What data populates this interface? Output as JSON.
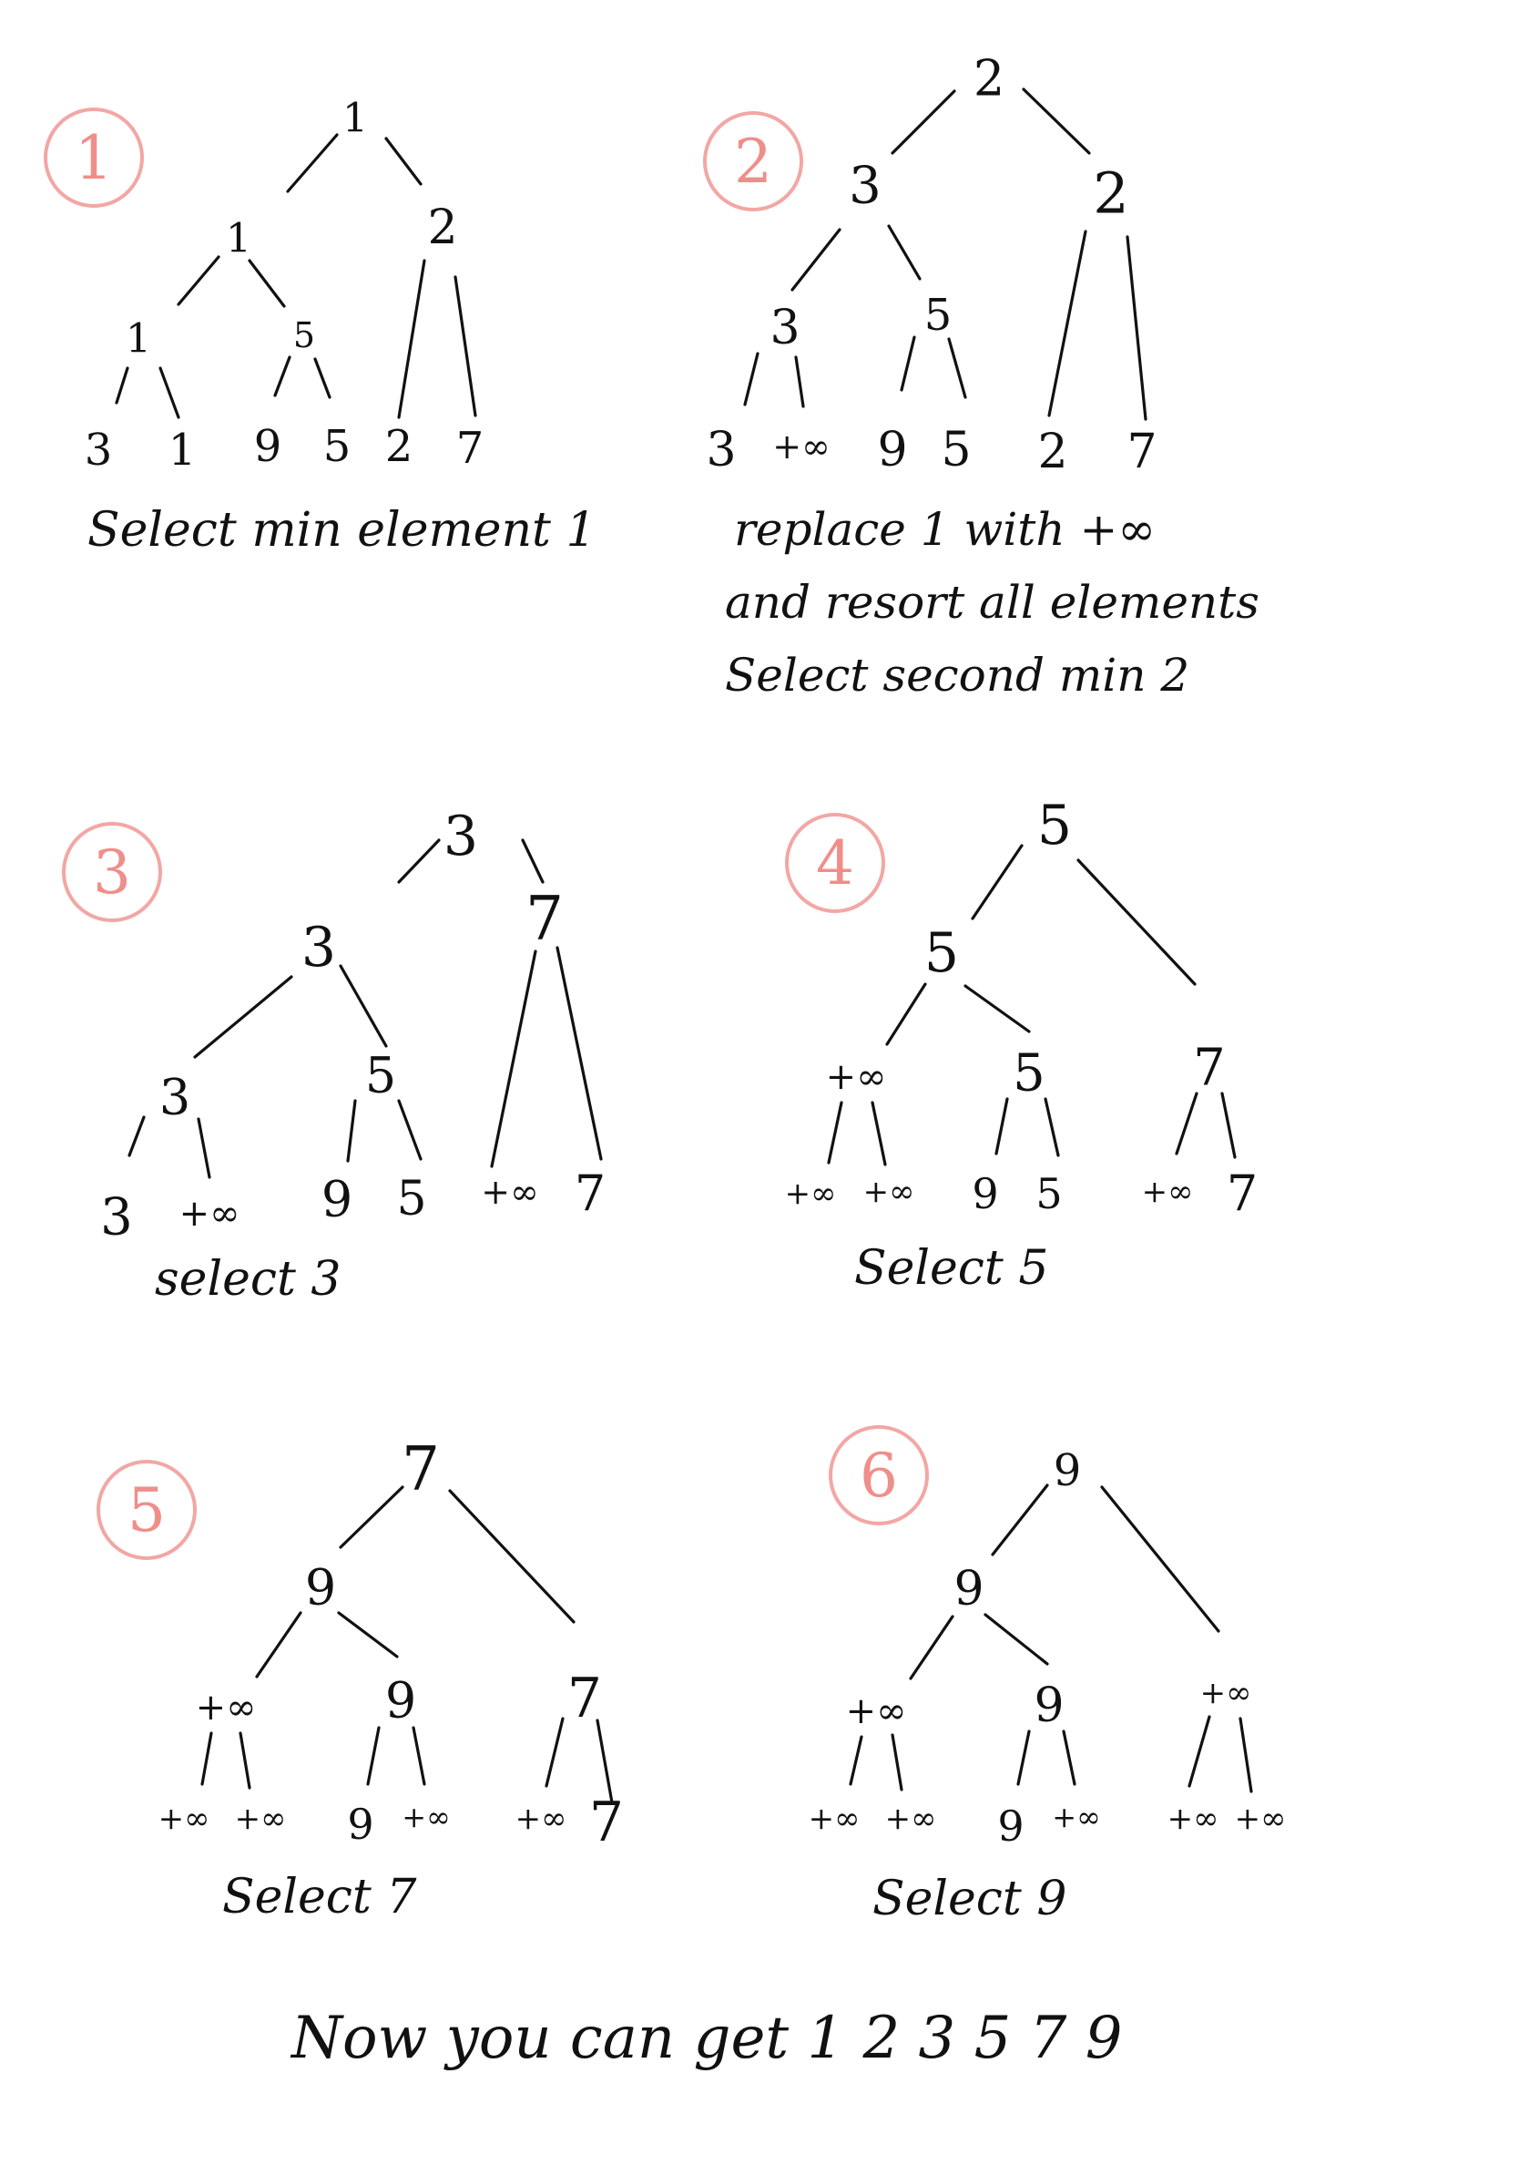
{
  "panels": [
    {
      "label": "1",
      "root": "1",
      "level2": [
        "1",
        "2"
      ],
      "level3": [
        "1",
        "5"
      ],
      "leaves": [
        "3",
        "1",
        "9",
        "5",
        "2",
        "7"
      ],
      "caption": [
        "Select min element 1"
      ]
    },
    {
      "label": "2",
      "root": "2",
      "level2": [
        "3",
        "2"
      ],
      "level3": [
        "3",
        "5"
      ],
      "leaves": [
        "3",
        "+∞",
        "9",
        "5",
        "2",
        "7"
      ],
      "caption": [
        "replace 1 with +∞",
        "and resort all elements",
        "Select second min 2"
      ]
    },
    {
      "label": "3",
      "root": "3",
      "level2": [
        "3",
        "7"
      ],
      "level3": [
        "3",
        "5"
      ],
      "leaves": [
        "3",
        "+∞",
        "9",
        "5",
        "+∞",
        "7"
      ],
      "caption": [
        "select 3"
      ]
    },
    {
      "label": "4",
      "root": "5",
      "level2": [
        "5"
      ],
      "level3": [
        "+∞",
        "5",
        "7"
      ],
      "leaves": [
        "+∞",
        "+∞",
        "9",
        "5",
        "+∞",
        "7"
      ],
      "caption": [
        "Select 5"
      ]
    },
    {
      "label": "5",
      "root": "7",
      "level2": [
        "9"
      ],
      "level3": [
        "+∞",
        "9",
        "7"
      ],
      "leaves": [
        "+∞",
        "+∞",
        "9",
        "+∞",
        "+∞",
        "7"
      ],
      "caption": [
        "Select 7"
      ]
    },
    {
      "label": "6",
      "root": "9",
      "level2": [
        "9"
      ],
      "level3": [
        "+∞",
        "9",
        "+∞"
      ],
      "leaves": [
        "+∞",
        "+∞",
        "9",
        "+∞",
        "+∞",
        "+∞"
      ],
      "caption": [
        "Select 9"
      ]
    }
  ],
  "final_text": "Now you can get 1 2 3 5 7 9",
  "colors": {
    "ink": "#111111",
    "label": "#f08e8a"
  }
}
